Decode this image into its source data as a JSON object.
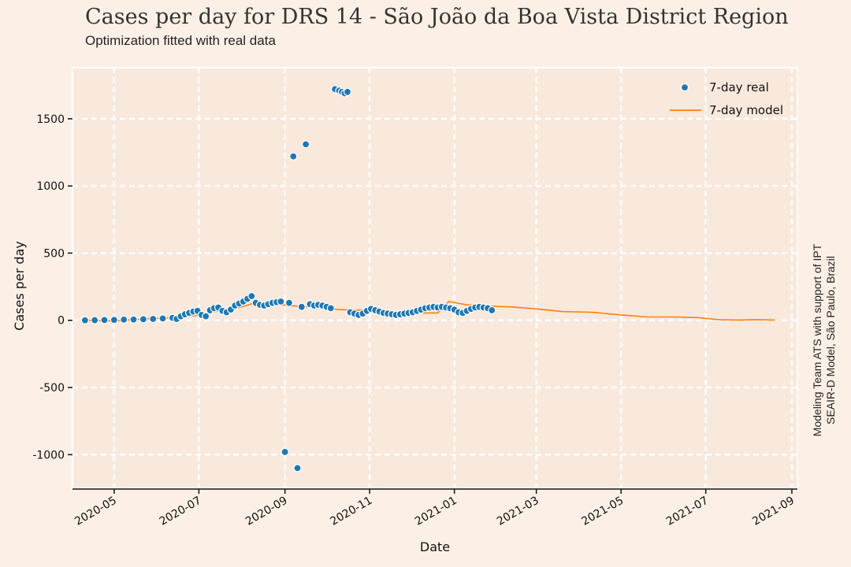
{
  "header": {
    "title": "Cases per day for DRS 14 - São João da Boa Vista District Region",
    "subtitle": "Optimization fitted with real data"
  },
  "credit": {
    "line1": "Modeling Team ATS with support of IPT",
    "line2": "SEAIR-D Model, São Paulo, Brazil"
  },
  "colors": {
    "background": "#fcf0e6",
    "plot_background": "#f9e8dc",
    "grid": "#ffffff",
    "real": "#1f77b4",
    "model": "#ff7f0e"
  },
  "chart_data": {
    "type": "scatter",
    "xlabel": "Date",
    "ylabel": "Cases per day",
    "xlim": [
      "2020-04-01",
      "2021-09-05"
    ],
    "ylim": [
      -1250,
      1880
    ],
    "xticks": [
      "2020-05",
      "2020-07",
      "2020-09",
      "2020-11",
      "2021-01",
      "2021-03",
      "2021-05",
      "2021-07",
      "2021-09"
    ],
    "yticks": [
      -1000,
      -500,
      0,
      500,
      1000,
      1500
    ],
    "ytick_labels": [
      "-1000",
      "-500",
      "0",
      "500",
      "1000",
      "1500"
    ],
    "grid": true,
    "legend_position": "top-right",
    "series": [
      {
        "name": "7-day real",
        "kind": "scatter",
        "points": [
          [
            "2020-04-10",
            0
          ],
          [
            "2020-04-17",
            1
          ],
          [
            "2020-04-24",
            2
          ],
          [
            "2020-05-01",
            3
          ],
          [
            "2020-05-08",
            5
          ],
          [
            "2020-05-15",
            6
          ],
          [
            "2020-05-22",
            8
          ],
          [
            "2020-05-29",
            10
          ],
          [
            "2020-06-05",
            14
          ],
          [
            "2020-06-12",
            18
          ],
          [
            "2020-06-15",
            10
          ],
          [
            "2020-06-18",
            30
          ],
          [
            "2020-06-21",
            45
          ],
          [
            "2020-06-24",
            55
          ],
          [
            "2020-06-27",
            65
          ],
          [
            "2020-06-30",
            70
          ],
          [
            "2020-07-03",
            40
          ],
          [
            "2020-07-06",
            30
          ],
          [
            "2020-07-09",
            75
          ],
          [
            "2020-07-12",
            90
          ],
          [
            "2020-07-15",
            95
          ],
          [
            "2020-07-18",
            70
          ],
          [
            "2020-07-21",
            60
          ],
          [
            "2020-07-24",
            80
          ],
          [
            "2020-07-27",
            110
          ],
          [
            "2020-07-30",
            125
          ],
          [
            "2020-08-02",
            140
          ],
          [
            "2020-08-05",
            160
          ],
          [
            "2020-08-08",
            180
          ],
          [
            "2020-08-11",
            130
          ],
          [
            "2020-08-14",
            115
          ],
          [
            "2020-08-17",
            110
          ],
          [
            "2020-08-20",
            120
          ],
          [
            "2020-08-23",
            130
          ],
          [
            "2020-08-26",
            135
          ],
          [
            "2020-08-29",
            140
          ],
          [
            "2020-09-01",
            -980
          ],
          [
            "2020-09-04",
            130
          ],
          [
            "2020-09-07",
            1220
          ],
          [
            "2020-09-10",
            -1100
          ],
          [
            "2020-09-13",
            100
          ],
          [
            "2020-09-16",
            1310
          ],
          [
            "2020-09-19",
            120
          ],
          [
            "2020-09-22",
            110
          ],
          [
            "2020-09-25",
            115
          ],
          [
            "2020-09-28",
            110
          ],
          [
            "2020-10-01",
            100
          ],
          [
            "2020-10-04",
            90
          ],
          [
            "2020-10-07",
            1720
          ],
          [
            "2020-10-10",
            1710
          ],
          [
            "2020-10-12",
            1700
          ],
          [
            "2020-10-14",
            1690
          ],
          [
            "2020-10-16",
            1700
          ],
          [
            "2020-10-18",
            60
          ],
          [
            "2020-10-21",
            50
          ],
          [
            "2020-10-24",
            40
          ],
          [
            "2020-10-27",
            50
          ],
          [
            "2020-10-30",
            70
          ],
          [
            "2020-11-02",
            85
          ],
          [
            "2020-11-05",
            75
          ],
          [
            "2020-11-08",
            65
          ],
          [
            "2020-11-11",
            55
          ],
          [
            "2020-11-14",
            50
          ],
          [
            "2020-11-17",
            45
          ],
          [
            "2020-11-20",
            40
          ],
          [
            "2020-11-23",
            45
          ],
          [
            "2020-11-26",
            50
          ],
          [
            "2020-11-29",
            55
          ],
          [
            "2020-12-02",
            60
          ],
          [
            "2020-12-05",
            70
          ],
          [
            "2020-12-08",
            80
          ],
          [
            "2020-12-11",
            90
          ],
          [
            "2020-12-14",
            95
          ],
          [
            "2020-12-17",
            100
          ],
          [
            "2020-12-20",
            95
          ],
          [
            "2020-12-23",
            100
          ],
          [
            "2020-12-26",
            95
          ],
          [
            "2020-12-29",
            90
          ],
          [
            "2021-01-01",
            80
          ],
          [
            "2021-01-04",
            60
          ],
          [
            "2021-01-07",
            55
          ],
          [
            "2021-01-10",
            70
          ],
          [
            "2021-01-13",
            85
          ],
          [
            "2021-01-16",
            95
          ],
          [
            "2021-01-19",
            100
          ],
          [
            "2021-01-22",
            95
          ],
          [
            "2021-01-25",
            90
          ],
          [
            "2021-01-28",
            75
          ]
        ]
      },
      {
        "name": "7-day model",
        "kind": "line",
        "points": [
          [
            "2020-04-10",
            0
          ],
          [
            "2020-05-01",
            -5
          ],
          [
            "2020-05-15",
            5
          ],
          [
            "2020-06-01",
            15
          ],
          [
            "2020-06-15",
            20
          ],
          [
            "2020-07-01",
            40
          ],
          [
            "2020-07-15",
            70
          ],
          [
            "2020-08-01",
            100
          ],
          [
            "2020-08-10",
            130
          ],
          [
            "2020-08-25",
            120
          ],
          [
            "2020-09-10",
            105
          ],
          [
            "2020-09-25",
            95
          ],
          [
            "2020-10-10",
            80
          ],
          [
            "2020-10-25",
            75
          ],
          [
            "2020-11-10",
            70
          ],
          [
            "2020-11-25",
            60
          ],
          [
            "2020-12-10",
            55
          ],
          [
            "2020-12-20",
            55
          ],
          [
            "2020-12-28",
            140
          ],
          [
            "2021-01-10",
            115
          ],
          [
            "2021-01-25",
            105
          ],
          [
            "2021-02-10",
            100
          ],
          [
            "2021-03-01",
            85
          ],
          [
            "2021-03-20",
            65
          ],
          [
            "2021-04-10",
            60
          ],
          [
            "2021-05-01",
            40
          ],
          [
            "2021-05-20",
            25
          ],
          [
            "2021-06-10",
            25
          ],
          [
            "2021-06-25",
            20
          ],
          [
            "2021-07-10",
            5
          ],
          [
            "2021-07-25",
            2
          ],
          [
            "2021-08-05",
            5
          ],
          [
            "2021-08-20",
            2
          ]
        ]
      }
    ]
  }
}
